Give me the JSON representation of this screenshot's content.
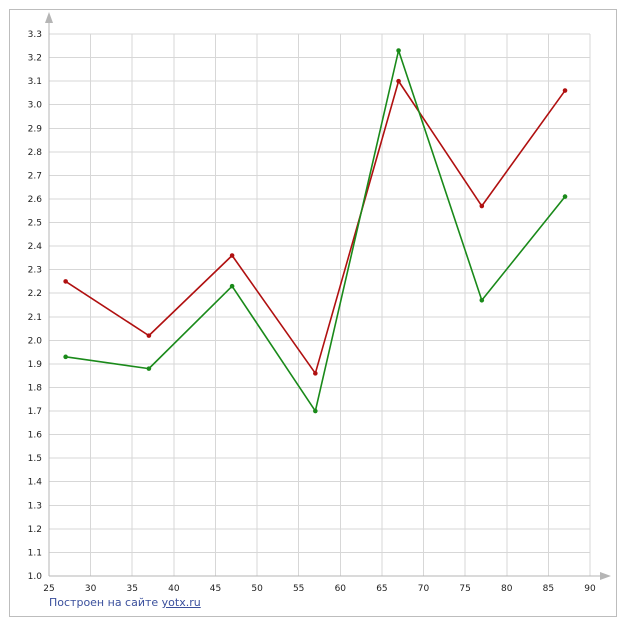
{
  "chart_data": {
    "type": "line",
    "title": "",
    "xlabel": "",
    "ylabel": "",
    "xlim": [
      25,
      90
    ],
    "ylim": [
      1.0,
      3.3
    ],
    "x_ticks": [
      25,
      30,
      35,
      40,
      45,
      50,
      55,
      60,
      65,
      70,
      75,
      80,
      85,
      90
    ],
    "y_ticks": [
      1.0,
      1.1,
      1.2,
      1.3,
      1.4,
      1.5,
      1.6,
      1.7,
      1.8,
      1.9,
      2.0,
      2.1,
      2.2,
      2.3,
      2.4,
      2.5,
      2.6,
      2.7,
      2.8,
      2.9,
      3.0,
      3.1,
      3.2,
      3.3
    ],
    "x_tick_labels": [
      "25",
      "30",
      "35",
      "40",
      "45",
      "50",
      "55",
      "60",
      "65",
      "70",
      "75",
      "80",
      "85",
      "90"
    ],
    "y_tick_labels": [
      "1.0",
      "1.1",
      "1.2",
      "1.3",
      "1.4",
      "1.5",
      "1.6",
      "1.7",
      "1.8",
      "1.9",
      "2.0",
      "2.1",
      "2.2",
      "2.3",
      "2.4",
      "2.5",
      "2.6",
      "2.7",
      "2.8",
      "2.9",
      "3.0",
      "3.1",
      "3.2",
      "3.3"
    ],
    "grid": true,
    "legend": "none",
    "series": [
      {
        "color": "#b01010",
        "points": [
          {
            "x": 27,
            "y": 2.25
          },
          {
            "x": 37,
            "y": 2.02
          },
          {
            "x": 47,
            "y": 2.36
          },
          {
            "x": 57,
            "y": 1.86
          },
          {
            "x": 67,
            "y": 3.1
          },
          {
            "x": 77,
            "y": 2.57
          },
          {
            "x": 87,
            "y": 3.06
          }
        ]
      },
      {
        "color": "#1a8a1a",
        "points": [
          {
            "x": 27,
            "y": 1.93
          },
          {
            "x": 37,
            "y": 1.88
          },
          {
            "x": 47,
            "y": 2.23
          },
          {
            "x": 57,
            "y": 1.7
          },
          {
            "x": 67,
            "y": 3.23
          },
          {
            "x": 77,
            "y": 2.17
          },
          {
            "x": 87,
            "y": 2.61
          }
        ]
      }
    ]
  },
  "footer": {
    "prefix": "Построен на сайте ",
    "link": "yotx.ru"
  }
}
